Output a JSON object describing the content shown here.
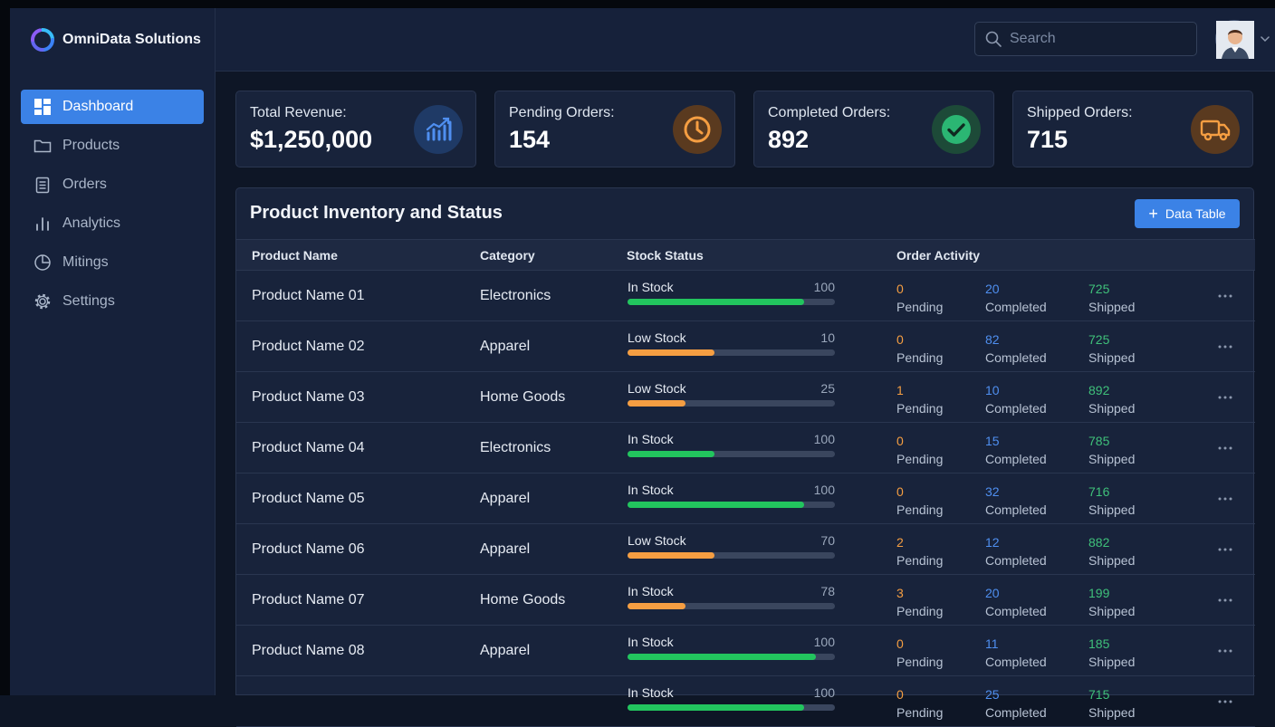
{
  "app": {
    "name": "OmniData Solutions"
  },
  "sidebar": {
    "items": [
      {
        "label": "Dashboard",
        "icon": "dashboard-icon",
        "active": true
      },
      {
        "label": "Products",
        "icon": "folder-icon"
      },
      {
        "label": "Orders",
        "icon": "clipboard-icon"
      },
      {
        "label": "Analytics",
        "icon": "bar-chart-icon"
      },
      {
        "label": "Mitings",
        "icon": "clock-icon"
      },
      {
        "label": "Settings",
        "icon": "gear-icon"
      }
    ]
  },
  "header": {
    "search_placeholder": "Search"
  },
  "cards": [
    {
      "label": "Total Revenue:",
      "value": "$1,250,000",
      "icon": "growth-chart-icon"
    },
    {
      "label": "Pending Orders:",
      "value": "154",
      "icon": "clock-icon"
    },
    {
      "label": "Completed Orders:",
      "value": "892",
      "icon": "check-circle-icon"
    },
    {
      "label": "Shipped Orders:",
      "value": "715",
      "icon": "truck-icon"
    }
  ],
  "inventory": {
    "title": "Product Inventory and Status",
    "button_label": "Data Table",
    "columns": [
      "Product Name",
      "Category",
      "Stock Status",
      "Order Activity"
    ],
    "activity_labels": {
      "pending": "Pending",
      "completed": "Completed",
      "shipped": "Shipped"
    },
    "colors": {
      "in_stock": "#22c55e",
      "low_stock": "#f59e42",
      "pending": "#f59e42",
      "completed": "#4f8ff0",
      "shipped": "#3fc07a"
    },
    "rows": [
      {
        "name": "Product Name 01",
        "category": "Electronics",
        "stock_label": "In Stock",
        "stock_value": "100",
        "stock_fill": 0.85,
        "bar_color": "#22c55e",
        "pending": "0",
        "completed": "20",
        "shipped": "725"
      },
      {
        "name": "Product Name 02",
        "category": "Apparel",
        "stock_label": "Low Stock",
        "stock_value": "10",
        "stock_fill": 0.42,
        "bar_color": "#f59e42",
        "pending": "0",
        "completed": "82",
        "shipped": "725"
      },
      {
        "name": "Product Name 03",
        "category": "Home Goods",
        "stock_label": "Low Stock",
        "stock_value": "25",
        "stock_fill": 0.28,
        "bar_color": "#f59e42",
        "pending": "1",
        "completed": "10",
        "shipped": "892"
      },
      {
        "name": "Product Name 04",
        "category": "Electronics",
        "stock_label": "In Stock",
        "stock_value": "100",
        "stock_fill": 0.42,
        "bar_color": "#22c55e",
        "pending": "0",
        "completed": "15",
        "shipped": "785"
      },
      {
        "name": "Product Name 05",
        "category": "Apparel",
        "stock_label": "In Stock",
        "stock_value": "100",
        "stock_fill": 0.85,
        "bar_color": "#22c55e",
        "pending": "0",
        "completed": "32",
        "shipped": "716"
      },
      {
        "name": "Product Name 06",
        "category": "Apparel",
        "stock_label": "Low Stock",
        "stock_value": "70",
        "stock_fill": 0.42,
        "bar_color": "#f59e42",
        "pending": "2",
        "completed": "12",
        "shipped": "882"
      },
      {
        "name": "Product Name 07",
        "category": "Home Goods",
        "stock_label": "In Stock",
        "stock_value": "78",
        "stock_fill": 0.28,
        "bar_color": "#f59e42",
        "pending": "3",
        "completed": "20",
        "shipped": "199"
      },
      {
        "name": "Product Name 08",
        "category": "Apparel",
        "stock_label": "In Stock",
        "stock_value": "100",
        "stock_fill": 0.91,
        "bar_color": "#22c55e",
        "pending": "0",
        "completed": "11",
        "shipped": "185"
      },
      {
        "name": "",
        "category": "",
        "stock_label": "In Stock",
        "stock_value": "100",
        "stock_fill": 0.85,
        "bar_color": "#22c55e",
        "pending": "0",
        "completed": "25",
        "shipped": "715"
      }
    ]
  }
}
